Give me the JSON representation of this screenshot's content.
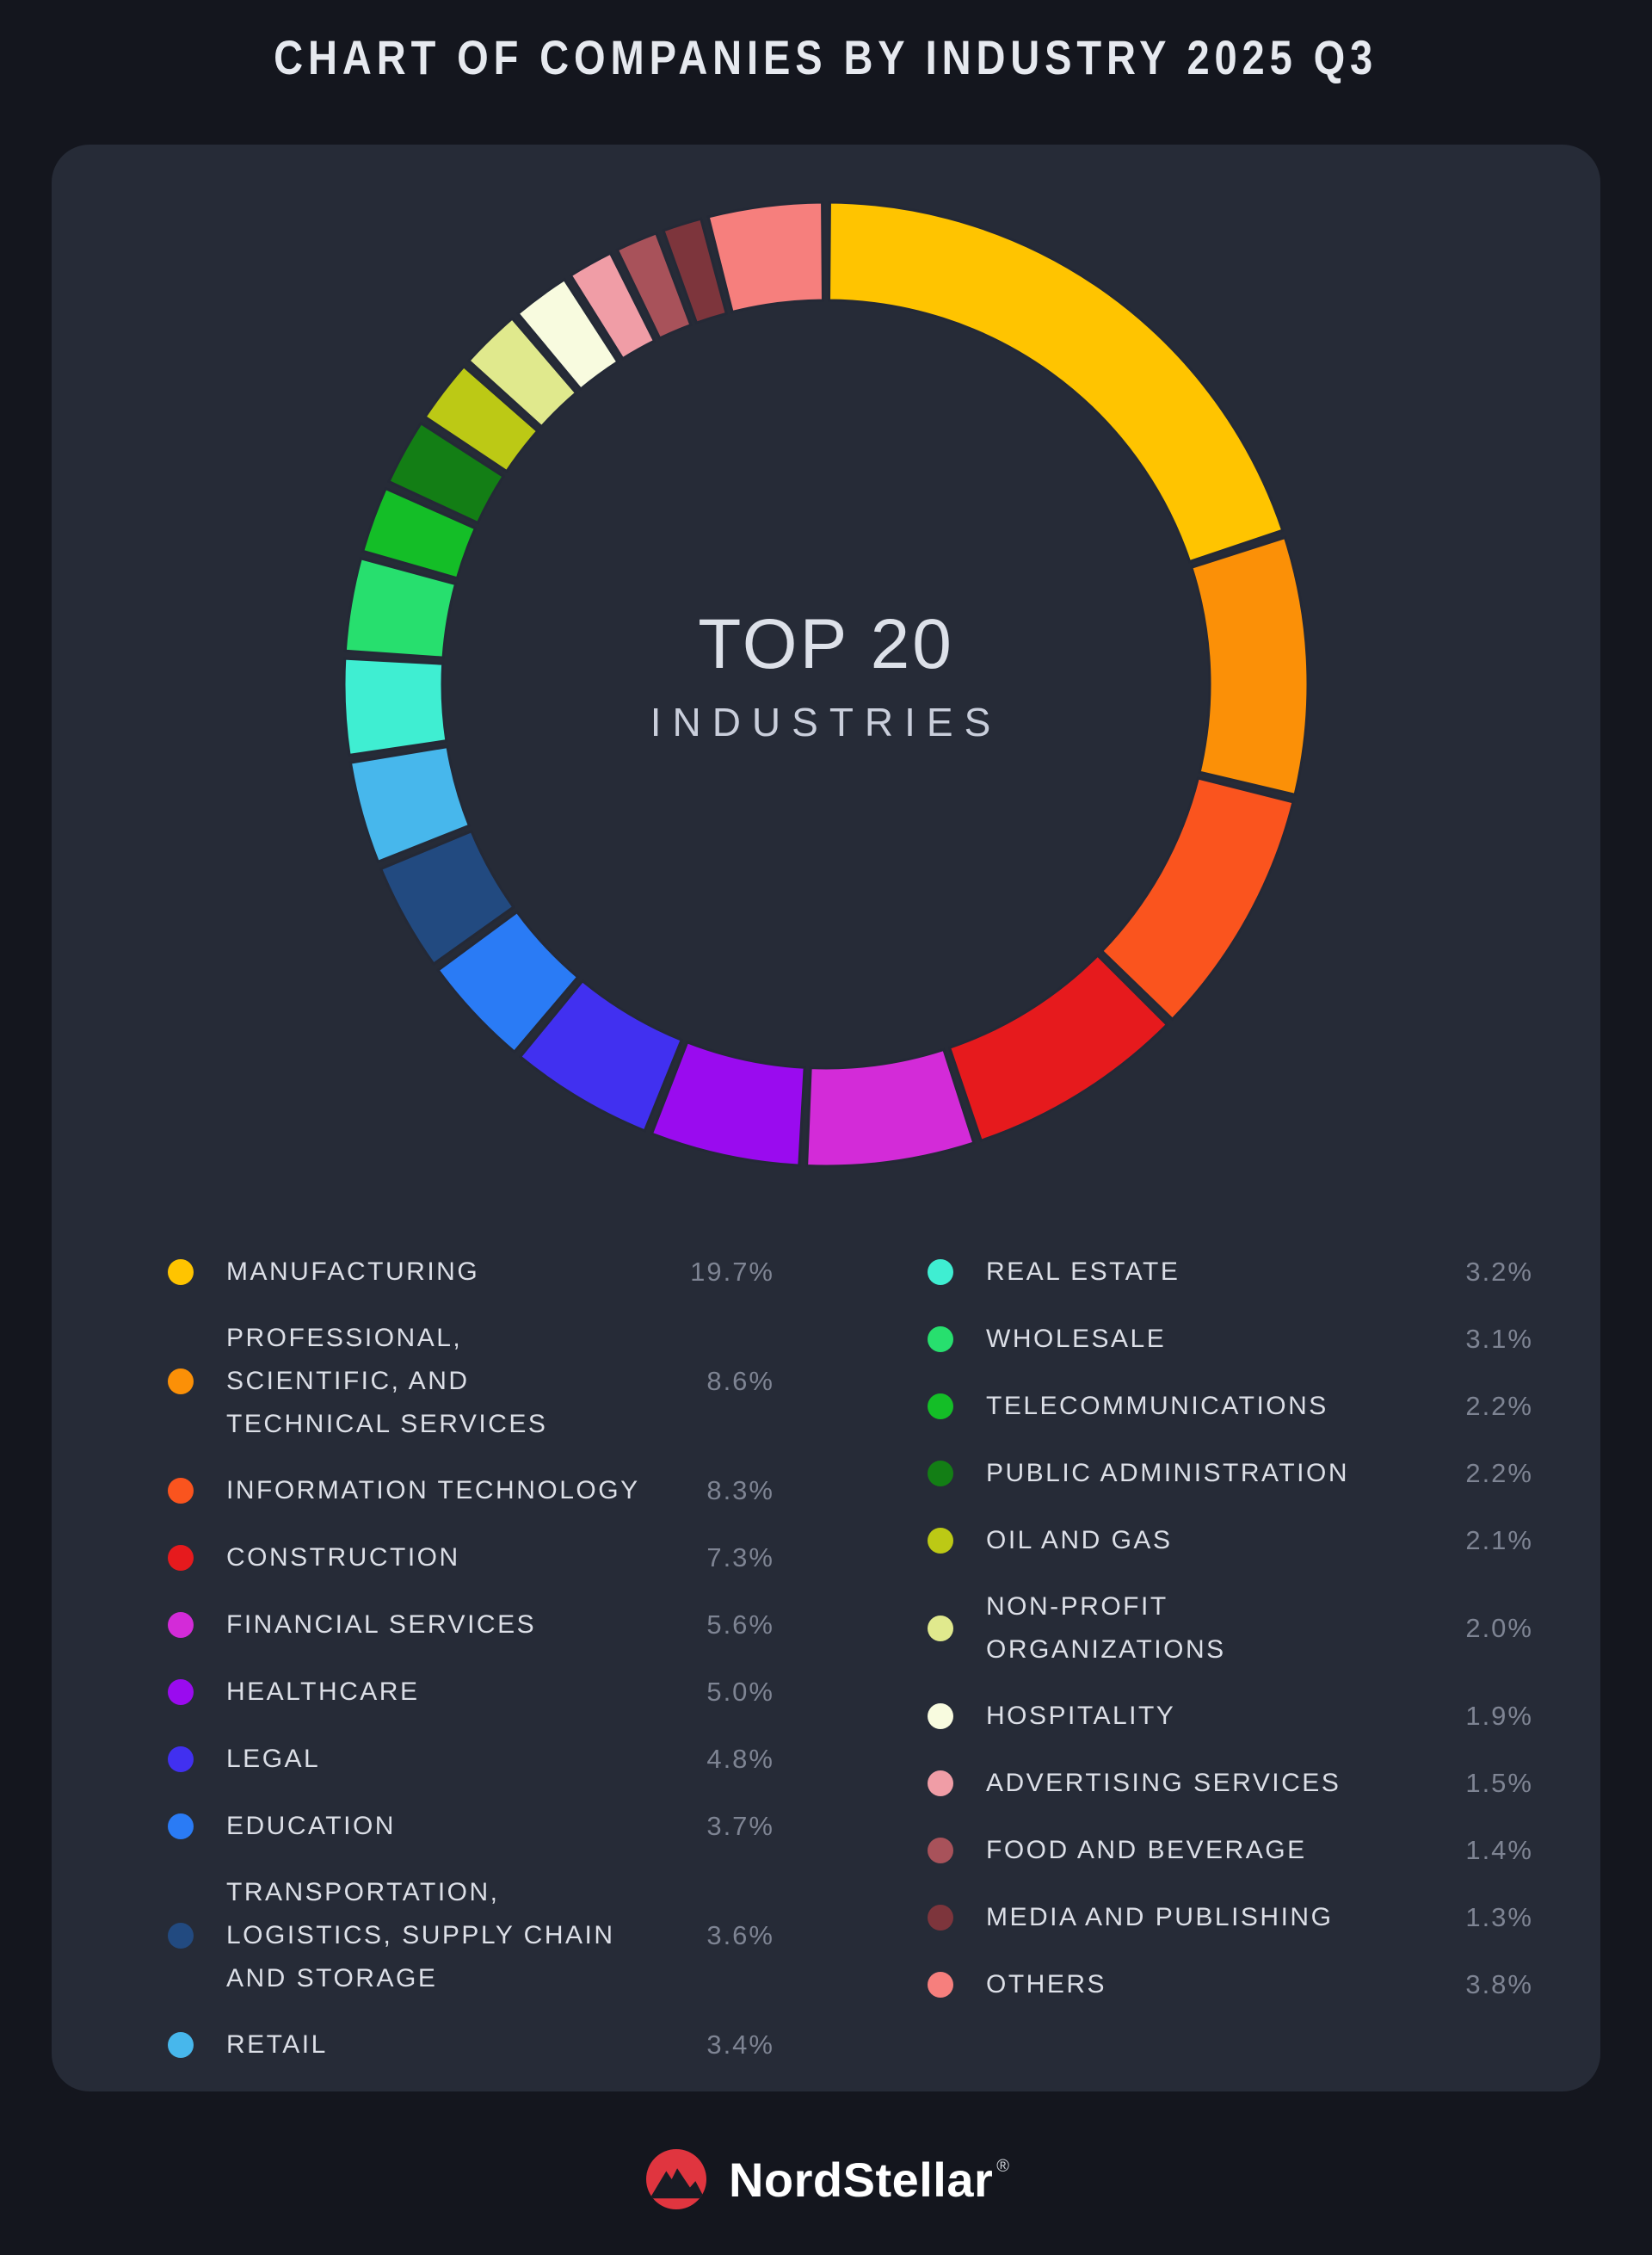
{
  "title": "CHART OF COMPANIES BY INDUSTRY 2025 Q3",
  "donut_center": {
    "line1": "TOP 20",
    "line2": "INDUSTRIES"
  },
  "chart_data": {
    "type": "pie",
    "subtype": "donut",
    "title": "CHART OF COMPANIES BY INDUSTRY 2025 Q3",
    "center_label": "TOP 20 INDUSTRIES",
    "unit": "%",
    "start_angle_deg": -90,
    "direction": "clockwise",
    "outer_radius": 560,
    "inner_radius": 446,
    "segments": [
      {
        "label": "MANUFACTURING",
        "value": 19.7,
        "color": "#ffc400"
      },
      {
        "label": "PROFESSIONAL,\nSCIENTIFIC, AND\nTECHNICAL SERVICES",
        "value": 8.6,
        "color": "#fb9007"
      },
      {
        "label": "INFORMATION TECHNOLOGY",
        "value": 8.3,
        "color": "#fa541e"
      },
      {
        "label": "CONSTRUCTION",
        "value": 7.3,
        "color": "#e61a1d"
      },
      {
        "label": "FINANCIAL SERVICES",
        "value": 5.6,
        "color": "#d32bd8"
      },
      {
        "label": "HEALTHCARE",
        "value": 5.0,
        "color": "#9a0bef"
      },
      {
        "label": "LEGAL",
        "value": 4.8,
        "color": "#4130f0"
      },
      {
        "label": "EDUCATION",
        "value": 3.7,
        "color": "#2a7bf5"
      },
      {
        "label": "TRANSPORTATION,\nLOGISTICS, SUPPLY CHAIN\nAND STORAGE",
        "value": 3.6,
        "color": "#224a80"
      },
      {
        "label": "RETAIL",
        "value": 3.4,
        "color": "#47b7ec"
      },
      {
        "label": "REAL ESTATE",
        "value": 3.2,
        "color": "#3feed2"
      },
      {
        "label": "WHOLESALE",
        "value": 3.1,
        "color": "#27df6e"
      },
      {
        "label": "TELECOMMUNICATIONS",
        "value": 2.2,
        "color": "#14be27"
      },
      {
        "label": "PUBLIC ADMINISTRATION",
        "value": 2.2,
        "color": "#137e15"
      },
      {
        "label": "OIL AND GAS",
        "value": 2.1,
        "color": "#bcc915"
      },
      {
        "label": "NON-PROFIT\nORGANIZATIONS",
        "value": 2.0,
        "color": "#e0e98d"
      },
      {
        "label": "HOSPITALITY",
        "value": 1.9,
        "color": "#f8fbdf"
      },
      {
        "label": "ADVERTISING SERVICES",
        "value": 1.5,
        "color": "#f09da6"
      },
      {
        "label": "FOOD AND BEVERAGE",
        "value": 1.4,
        "color": "#a8525a"
      },
      {
        "label": "MEDIA AND PUBLISHING",
        "value": 1.3,
        "color": "#7d353c"
      },
      {
        "label": "OTHERS",
        "value": 3.8,
        "color": "#f67f7d"
      }
    ],
    "legend_columns": [
      [
        0,
        1,
        2,
        3,
        4,
        5,
        6,
        7,
        8,
        9
      ],
      [
        10,
        11,
        12,
        13,
        14,
        15,
        16,
        17,
        18,
        19,
        20
      ]
    ]
  },
  "footer": {
    "brand": "NordStellar",
    "registered_mark": "®"
  },
  "theme": {
    "page_bg": "#14161e",
    "card_bg": "#262b37",
    "title_color": "#e6e9ef",
    "label_color": "#dcdfe7",
    "pct_color": "#7e8493",
    "segment_gap_stroke": "#242936",
    "logo_red": "#e0353f",
    "logo_mountain": "#181b24",
    "logo_text": "#ffffff"
  }
}
